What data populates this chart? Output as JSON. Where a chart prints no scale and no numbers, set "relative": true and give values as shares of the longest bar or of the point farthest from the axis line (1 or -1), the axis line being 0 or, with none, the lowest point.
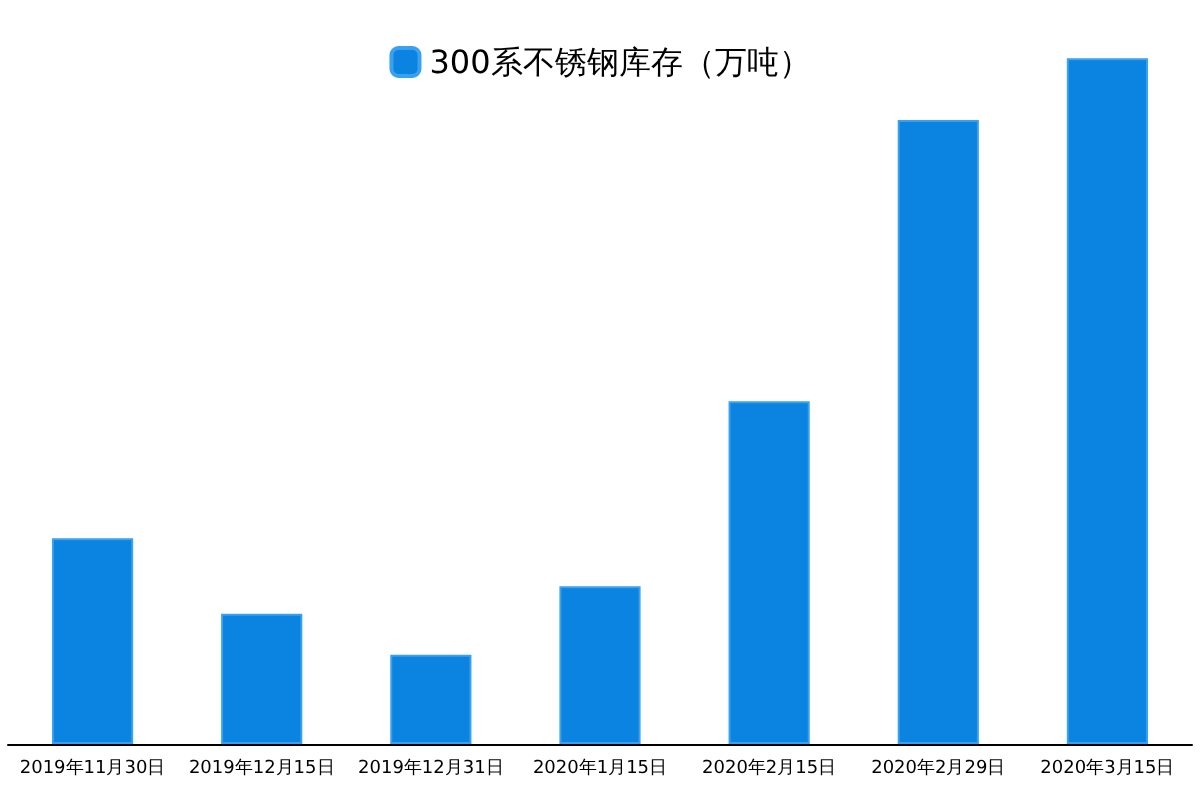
{
  "chart_data": {
    "type": "bar",
    "relative": true,
    "categories": [
      "2019年11月30日",
      "2019年12月15日",
      "2019年12月31日",
      "2020年1月15日",
      "2020年2月15日",
      "2020年2月29日",
      "2020年3月15日"
    ],
    "series": [
      {
        "name": "300系不锈钢库存（万吨）",
        "color": "#0a84e0",
        "values": [
          0.3,
          0.19,
          0.13,
          0.23,
          0.5,
          0.91,
          1
        ]
      }
    ],
    "legend": "top"
  }
}
